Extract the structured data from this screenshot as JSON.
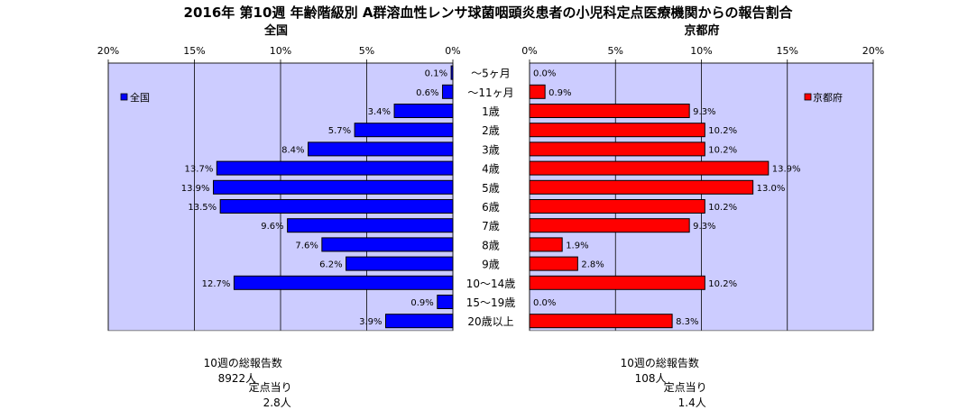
{
  "title": "2016年 第10週 年齢階級別 A群溶血性レンサ球菌咽頭炎患者の小児科定点医療機関からの報告割合",
  "left_panel": {
    "heading": "全国",
    "legend_label": "全国",
    "color": "#0000ff",
    "total_label": "10週の総報告数",
    "total_value": "8922人",
    "per_site_label": "定点当り",
    "per_site_value": "2.8人"
  },
  "right_panel": {
    "heading": "京都府",
    "legend_label": "京都府",
    "color": "#ff0000",
    "total_label": "10週の総報告数",
    "total_value": "108人",
    "per_site_label": "定点当り",
    "per_site_value": "1.4人"
  },
  "colors": {
    "plot_bg": "#ccccff",
    "grid": "#000000"
  },
  "chart_data": {
    "type": "bar",
    "orientation": "horizontal-butterfly",
    "categories": [
      "～5ヶ月",
      "～11ヶ月",
      "1歳",
      "2歳",
      "3歳",
      "4歳",
      "5歳",
      "6歳",
      "7歳",
      "8歳",
      "9歳",
      "10～14歳",
      "15～19歳",
      "20歳以上"
    ],
    "axis_ticks": [
      "0%",
      "5%",
      "10%",
      "15%",
      "20%"
    ],
    "xlim": [
      0,
      20
    ],
    "series": [
      {
        "name": "全国",
        "values": [
          0.1,
          0.6,
          3.4,
          5.7,
          8.4,
          13.7,
          13.9,
          13.5,
          9.6,
          7.6,
          6.2,
          12.7,
          0.9,
          3.9
        ],
        "labels": [
          "0.1%",
          "0.6%",
          "3.4%",
          "5.7%",
          "8.4%",
          "13.7%",
          "13.9%",
          "13.5%",
          "9.6%",
          "7.6%",
          "6.2%",
          "12.7%",
          "0.9%",
          "3.9%"
        ]
      },
      {
        "name": "京都府",
        "values": [
          0.0,
          0.9,
          9.3,
          10.2,
          10.2,
          13.9,
          13.0,
          10.2,
          9.3,
          1.9,
          2.8,
          10.2,
          0.0,
          8.3
        ],
        "labels": [
          "0.0%",
          "0.9%",
          "9.3%",
          "10.2%",
          "10.2%",
          "13.9%",
          "13.0%",
          "10.2%",
          "9.3%",
          "1.9%",
          "2.8%",
          "10.2%",
          "0.0%",
          "8.3%"
        ]
      }
    ]
  }
}
